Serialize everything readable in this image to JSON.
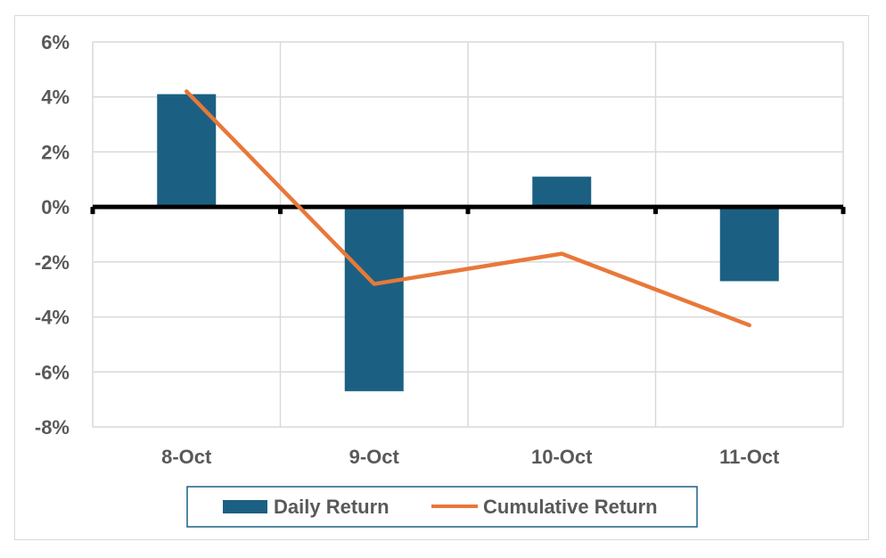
{
  "chart_data": {
    "type": "bar",
    "categories": [
      "8-Oct",
      "9-Oct",
      "10-Oct",
      "11-Oct"
    ],
    "ylim": [
      -8,
      6
    ],
    "yticks": [
      6,
      4,
      2,
      0,
      -2,
      -4,
      -6,
      -8
    ],
    "ytick_labels": [
      "6%",
      "4%",
      "2%",
      "0%",
      "-2%",
      "-4%",
      "-6%",
      "-8%"
    ],
    "grid": true,
    "legend_position": "bottom",
    "series": [
      {
        "name": "Daily Return",
        "kind": "bar",
        "color": "#1b6083",
        "values": [
          4.1,
          -6.7,
          1.1,
          -2.7
        ]
      },
      {
        "name": "Cumulative Return",
        "kind": "line",
        "color": "#e8783a",
        "values": [
          4.2,
          -2.8,
          -1.7,
          -4.3
        ]
      }
    ]
  }
}
